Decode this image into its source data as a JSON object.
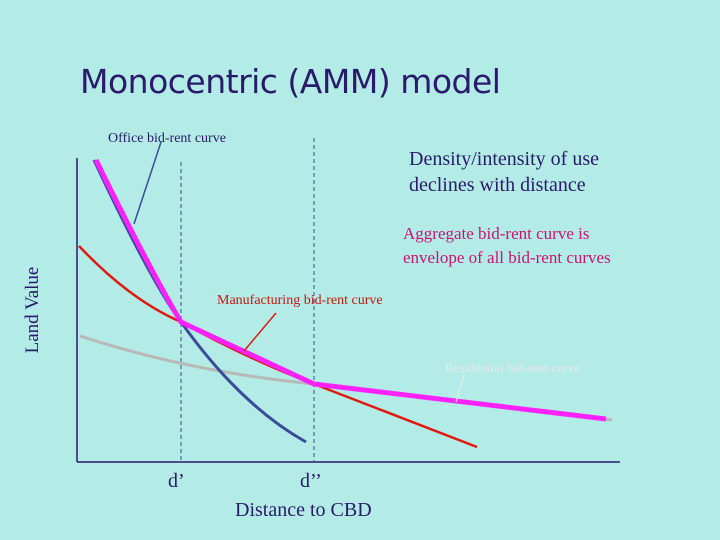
{
  "title": "Monocentric (AMM) model",
  "labels": {
    "office": "Office bid-rent curve",
    "density_line1": "Density/intensity of use",
    "density_line2": "declines with distance",
    "aggregate_line1": "Aggregate bid-rent curve is",
    "aggregate_line2": "envelope of all bid-rent curves",
    "manufacturing": "Manufacturing bid-rent curve",
    "residential": "Residential bid-rent curve"
  },
  "axes": {
    "ylabel": "Land Value",
    "xlabel": "Distance to CBD",
    "tick1": "d’",
    "tick2": "d’’"
  },
  "colors": {
    "background": "#b3ece6",
    "office": "#3b4a9a",
    "manufacturing": "#e01a10",
    "residential": "#b8b8b8",
    "aggregate": "#ff22ff",
    "axis": "#2a1a6b"
  }
}
